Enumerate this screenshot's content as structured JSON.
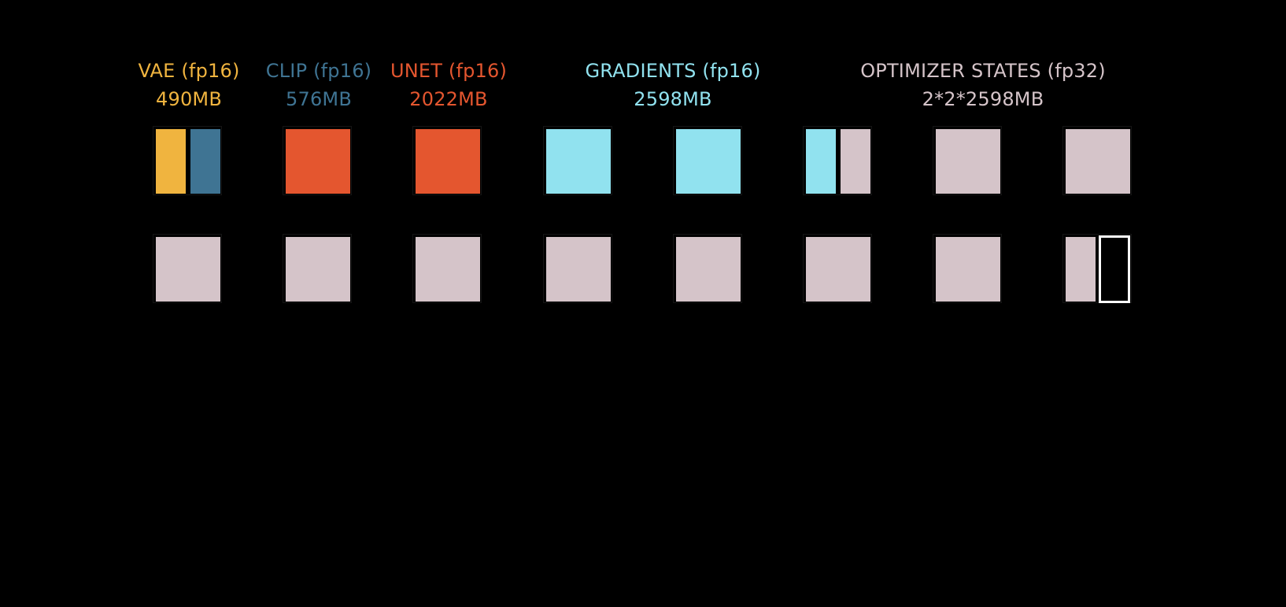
{
  "colors": {
    "background": "#000000",
    "vae": "#f0b43f",
    "clip": "#3f7493",
    "unet": "#e4562f",
    "gradients": "#91e2ef",
    "optimizer": "#d5c4c9",
    "empty_outline": "#ffffff"
  },
  "legend": [
    {
      "key": "vae",
      "title": "VAE (fp16)",
      "size": "490MB",
      "color": "#f0b43f"
    },
    {
      "key": "clip",
      "title": "CLIP (fp16)",
      "size": "576MB",
      "color": "#3f7493"
    },
    {
      "key": "unet",
      "title": "UNET (fp16)",
      "size": "2022MB",
      "color": "#e4562f"
    },
    {
      "key": "gradients",
      "title": "GRADIENTS (fp16)",
      "size": "2598MB",
      "color": "#91e2ef"
    },
    {
      "key": "optimizer",
      "title": "OPTIMIZER STATES (fp32)",
      "size": "2*2*2598MB",
      "color": "#d5c4c9"
    }
  ],
  "blocks": [
    [
      {
        "left": "vae",
        "right": "clip"
      },
      {
        "full": "unet"
      },
      {
        "full": "unet"
      },
      {
        "full": "gradients"
      },
      {
        "full": "gradients"
      },
      {
        "left": "gradients",
        "right": "optimizer"
      },
      {
        "full": "optimizer"
      },
      {
        "full": "optimizer"
      }
    ],
    [
      {
        "full": "optimizer"
      },
      {
        "full": "optimizer"
      },
      {
        "full": "optimizer"
      },
      {
        "full": "optimizer"
      },
      {
        "full": "optimizer"
      },
      {
        "full": "optimizer"
      },
      {
        "full": "optimizer"
      },
      {
        "left": "optimizer",
        "right": "empty"
      }
    ]
  ]
}
